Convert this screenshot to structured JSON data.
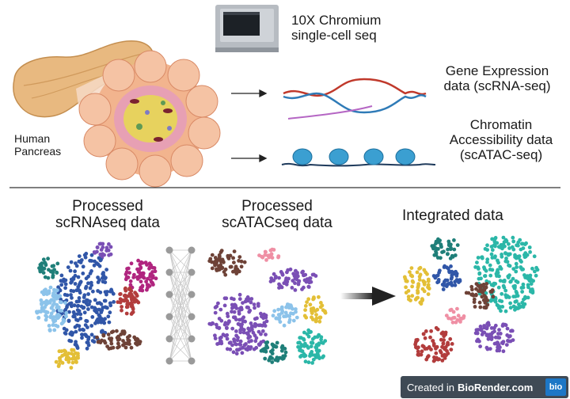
{
  "top": {
    "instrument_line1": "10X Chromium",
    "instrument_line2": "single-cell seq",
    "organ_line1": "Human",
    "organ_line2": "Pancreas",
    "gex_line1": "Gene Expression",
    "gex_line2": "data (scRNA-seq)",
    "atac_line1": "Chromatin",
    "atac_line2": "Accessibility data",
    "atac_line3": "(scATAC-seq)"
  },
  "bottom": {
    "rna_line1": "Processed",
    "rna_line2": "scRNAseq data",
    "atac_line1": "Processed",
    "atac_line2": "scATACseq data",
    "integrated": "Integrated data"
  },
  "badge": {
    "prefix": "Created in",
    "brand": "BioRender.com",
    "logo": "bio"
  },
  "colors": {
    "teal": "#1f7f79",
    "cyan": "#2bb7a8",
    "navy": "#3056a8",
    "lightblue": "#8cc3ea",
    "purple": "#7a4fb5",
    "magenta": "#b0257f",
    "pink": "#ef8fa4",
    "red": "#b23c3c",
    "brown": "#6e4237",
    "yellow": "#e3bf36",
    "arrow": "#222222",
    "divider": "#333333"
  }
}
